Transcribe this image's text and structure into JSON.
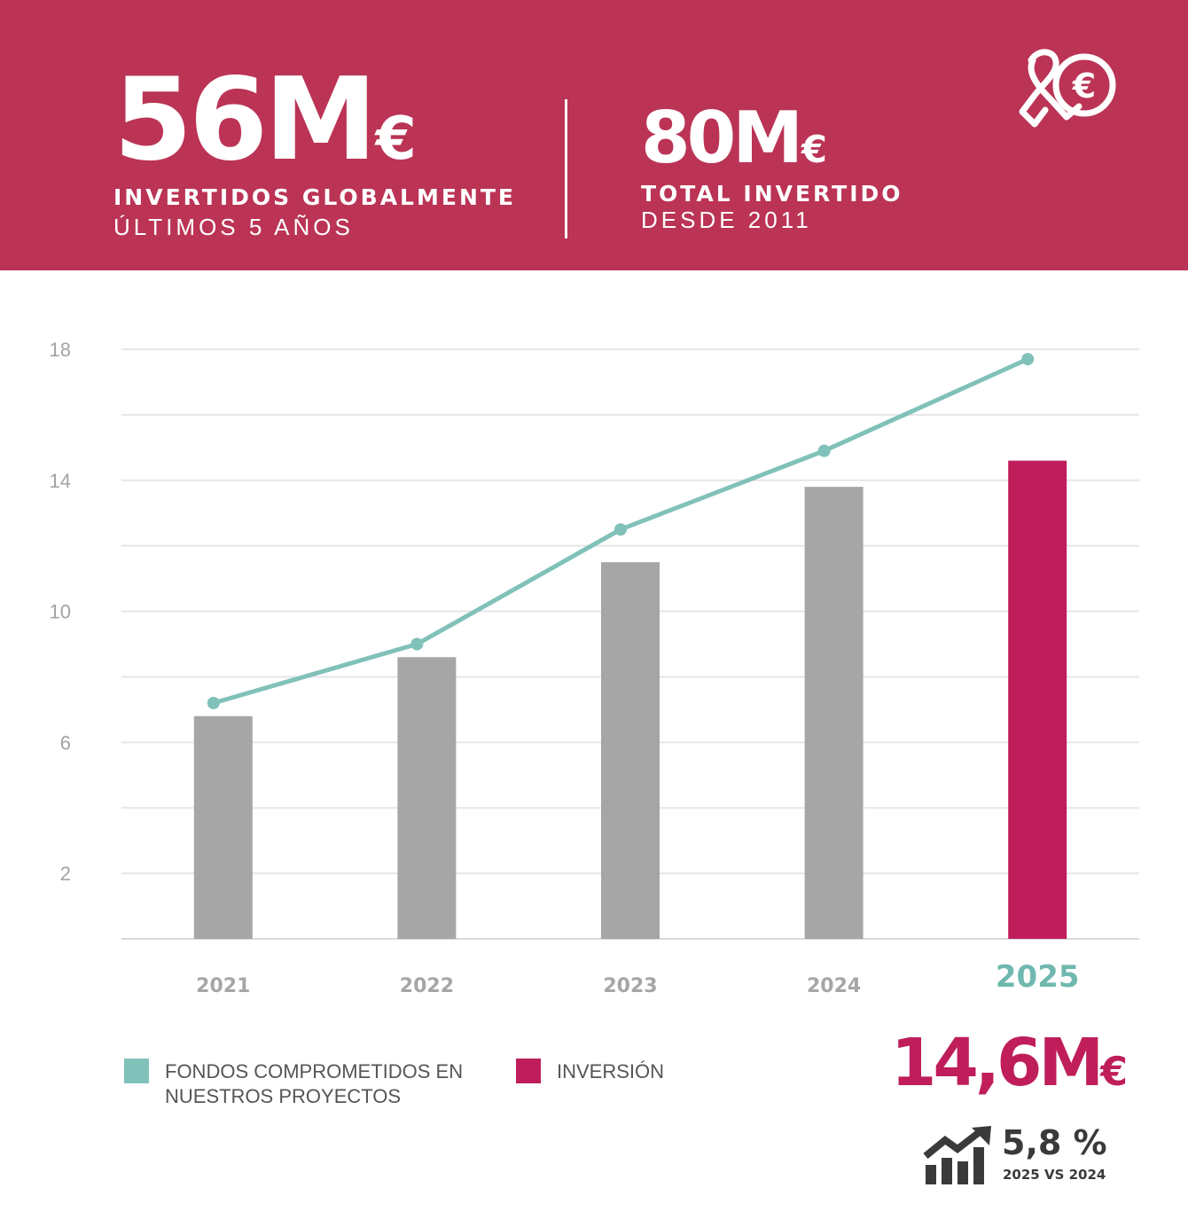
{
  "header": {
    "stat1": {
      "value": "56M",
      "currency": "€",
      "label": "INVERTIDOS GLOBALMENTE",
      "sublabel": "ÚLTIMOS 5 AÑOS"
    },
    "stat2": {
      "value": "80M",
      "currency": "€",
      "label": "TOTAL INVERTIDO",
      "sublabel": "DESDE 2011"
    },
    "logo_icon": "ribbon-euro-icon"
  },
  "colors": {
    "banner": "#bb3455",
    "bar_past": "#a6a6a6",
    "bar_current": "#bf1e5a",
    "line": "#80c1b9",
    "highlight_year": "#70b8af",
    "headline": "#bf1e5a"
  },
  "chart_data": {
    "type": "bar",
    "title": "",
    "xlabel": "",
    "ylabel": "",
    "categories": [
      "2021",
      "2022",
      "2023",
      "2024",
      "2025"
    ],
    "highlight_category": "2025",
    "ylim": [
      0,
      18
    ],
    "yticks": [
      2,
      6,
      10,
      14,
      18
    ],
    "grid": true,
    "series": [
      {
        "name": "INVERSIÓN",
        "kind": "bar",
        "values": [
          6.8,
          8.6,
          11.5,
          13.8,
          14.6
        ]
      },
      {
        "name": "FONDOS COMPROMETIDOS EN\nNUESTROS PROYECTOS",
        "kind": "line",
        "values": [
          7.2,
          9.0,
          12.5,
          14.9,
          17.7
        ]
      }
    ]
  },
  "legend": {
    "line_label": "FONDOS COMPROMETIDOS EN\nNUESTROS PROYECTOS",
    "bar_label": "INVERSIÓN"
  },
  "headline": {
    "value": "14,6M",
    "currency": "€"
  },
  "growth": {
    "icon": "growth-chart-icon",
    "value": "5,8 %",
    "label": "2025 VS 2024"
  }
}
